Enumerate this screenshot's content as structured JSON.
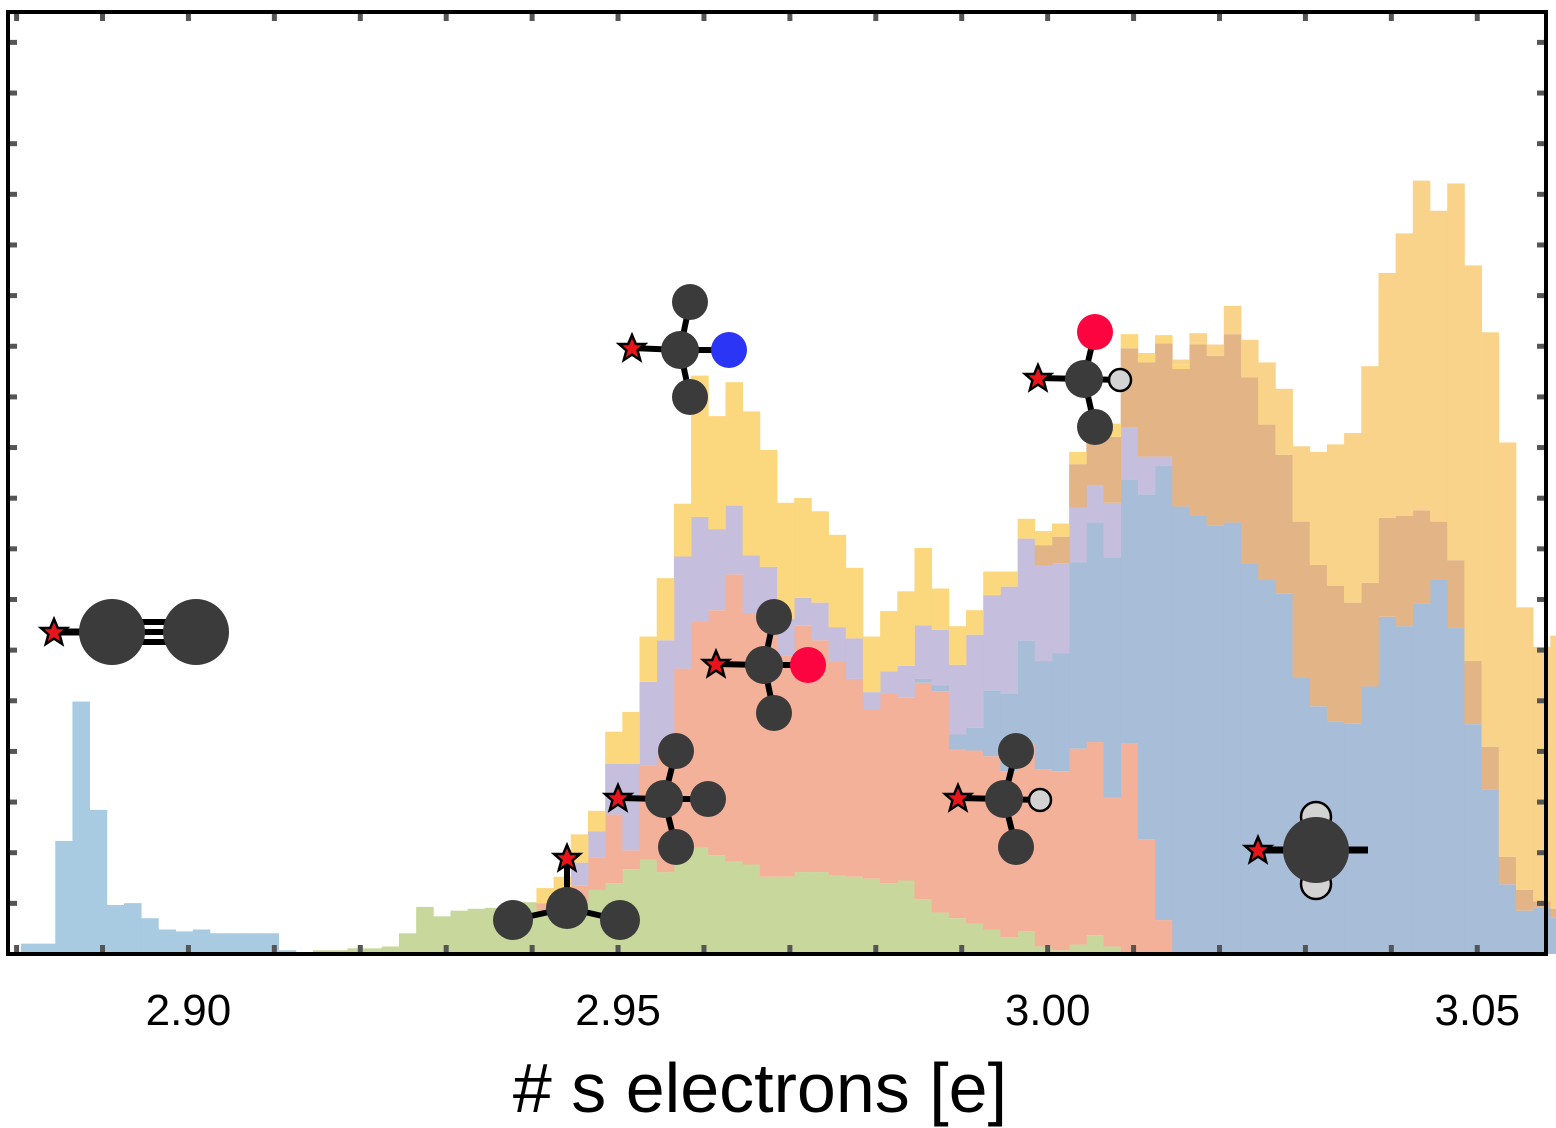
{
  "chart_data": {
    "type": "bar",
    "stacked": true,
    "xlabel": "# s electrons [e]",
    "xlim": [
      2.879,
      3.058
    ],
    "ylim": [
      0,
      1.0
    ],
    "bin_start": 2.8805,
    "bin_width": 0.002,
    "x_ticks": [
      2.9,
      2.95,
      3.0,
      3.05
    ],
    "x_tick_labels": [
      "2.90",
      "2.95",
      "3.00",
      "3.05"
    ],
    "y_ticks_shown_without_labels": true,
    "grid": false,
    "legend": "none",
    "series_note": "Per-bin stacked heights as fraction of the plot's vertical range; series distinguished by colour and identified by molecular-fragment icons.",
    "series": [
      {
        "color": "#a9cbe1",
        "values": [
          0.011,
          0.011,
          0.12,
          0.268,
          0.153,
          0.052,
          0.054,
          0.038,
          0.026,
          0.024,
          0.026,
          0.022,
          0.022,
          0.022,
          0.022,
          0.004,
          0.002,
          0,
          0,
          0,
          0,
          0,
          0,
          0,
          0,
          0,
          0,
          0,
          0,
          0,
          0,
          0,
          0,
          0,
          0,
          0,
          0,
          0,
          0,
          0,
          0,
          0,
          0,
          0,
          0,
          0,
          0,
          0,
          0,
          0,
          0,
          0,
          0,
          0,
          0,
          0,
          0,
          0,
          0,
          0,
          0,
          0,
          0,
          0,
          0,
          0,
          0,
          0,
          0,
          0,
          0,
          0,
          0,
          0,
          0,
          0,
          0,
          0,
          0,
          0,
          0,
          0,
          0,
          0,
          0,
          0,
          0,
          0,
          0,
          0,
          0
        ]
      },
      {
        "color": "#c8d89c",
        "values": [
          0,
          0,
          0,
          0,
          0,
          0,
          0,
          0,
          0,
          0,
          0,
          0,
          0,
          0,
          0,
          0,
          0,
          0.004,
          0.004,
          0.006,
          0.006,
          0.008,
          0.022,
          0.05,
          0.04,
          0.046,
          0.048,
          0.049,
          0.05,
          0.055,
          0.046,
          0.046,
          0.055,
          0.068,
          0.075,
          0.09,
          0.1,
          0.087,
          0.111,
          0.113,
          0.105,
          0.098,
          0.095,
          0.082,
          0.082,
          0.087,
          0.087,
          0.083,
          0.082,
          0.08,
          0.075,
          0.078,
          0.058,
          0.044,
          0.038,
          0.032,
          0.026,
          0.018,
          0.024,
          0.008,
          0.004,
          0.01,
          0.02,
          0.008,
          0,
          0,
          0,
          0,
          0,
          0,
          0,
          0,
          0,
          0,
          0,
          0,
          0,
          0,
          0,
          0,
          0,
          0,
          0,
          0,
          0,
          0,
          0,
          0,
          0
        ]
      },
      {
        "color": "#f3b19a",
        "values": [
          0,
          0,
          0,
          0,
          0,
          0,
          0,
          0,
          0,
          0,
          0,
          0,
          0,
          0,
          0,
          0,
          0,
          0,
          0,
          0,
          0,
          0,
          0,
          0,
          0,
          0,
          0,
          0,
          0,
          0,
          0.008,
          0.016,
          0.018,
          0.034,
          0.073,
          0.02,
          0.1,
          0.124,
          0.192,
          0.24,
          0.26,
          0.305,
          0.267,
          0.267,
          0.235,
          0.262,
          0.246,
          0.228,
          0.21,
          0.179,
          0.202,
          0.194,
          0.23,
          0.235,
          0.179,
          0.184,
          0.184,
          0.176,
          0.199,
          0.188,
          0.19,
          0.208,
          0.205,
          0.158,
          0.224,
          0.122,
          0.036,
          0,
          0,
          0,
          0,
          0,
          0,
          0,
          0,
          0,
          0,
          0,
          0,
          0,
          0,
          0,
          0,
          0,
          0,
          0,
          0,
          0,
          0,
          0,
          0
        ]
      },
      {
        "color": "#a8bdd8",
        "values": [
          0,
          0,
          0,
          0,
          0,
          0,
          0,
          0,
          0,
          0,
          0,
          0,
          0,
          0,
          0,
          0,
          0,
          0,
          0,
          0,
          0,
          0,
          0,
          0,
          0,
          0,
          0,
          0,
          0,
          0,
          0,
          0,
          0,
          0,
          0,
          0,
          0,
          0,
          0,
          0,
          0,
          0,
          0,
          0,
          0,
          0,
          0,
          0,
          0,
          0,
          0,
          0,
          0.004,
          0.006,
          0.016,
          0.024,
          0.07,
          0.082,
          0.11,
          0.115,
          0.125,
          0.198,
          0.233,
          0.255,
          0.28,
          0.366,
          0.482,
          0.475,
          0.465,
          0.455,
          0.458,
          0.415,
          0.397,
          0.383,
          0.293,
          0.263,
          0.247,
          0.245,
          0.284,
          0.358,
          0.348,
          0.372,
          0.398,
          0.346,
          0.244,
          0.175,
          0.074,
          0.046,
          0.049,
          0.039,
          0.02,
          0.02,
          0.004,
          0.011,
          0.01,
          0.004,
          0.002
        ]
      },
      {
        "color": "#c5bedc",
        "values": [
          0,
          0,
          0,
          0,
          0,
          0,
          0,
          0,
          0,
          0,
          0,
          0,
          0,
          0,
          0,
          0,
          0,
          0,
          0,
          0,
          0,
          0,
          0,
          0,
          0,
          0,
          0,
          0,
          0,
          0,
          0,
          0,
          0.024,
          0.028,
          0.054,
          0.092,
          0.089,
          0.122,
          0.119,
          0.111,
          0.086,
          0.073,
          0.061,
          0.062,
          0.039,
          0.029,
          0.04,
          0.036,
          0.043,
          0.019,
          0.023,
          0.034,
          0.057,
          0.059,
          0.074,
          0.099,
          0.101,
          0.114,
          0.108,
          0.101,
          0.096,
          0.058,
          0.039,
          0.058,
          0.055,
          0.04,
          0.01,
          0,
          0,
          0,
          0,
          0,
          0,
          0,
          0,
          0,
          0,
          0,
          0,
          0,
          0,
          0,
          0,
          0,
          0,
          0,
          0,
          0,
          0,
          0,
          0
        ]
      },
      {
        "color": "#e2b486",
        "values": [
          0,
          0,
          0,
          0,
          0,
          0,
          0,
          0,
          0,
          0,
          0,
          0,
          0,
          0,
          0,
          0,
          0,
          0,
          0,
          0,
          0,
          0,
          0,
          0,
          0,
          0,
          0,
          0,
          0,
          0,
          0,
          0,
          0,
          0,
          0,
          0,
          0,
          0,
          0,
          0,
          0,
          0,
          0,
          0,
          0,
          0,
          0,
          0,
          0,
          0,
          0,
          0,
          0,
          0,
          0,
          0,
          0,
          0,
          0,
          0.022,
          0.028,
          0.046,
          0.059,
          0.07,
          0.084,
          0.1,
          0.12,
          0.146,
          0.182,
          0.18,
          0.2,
          0.197,
          0.165,
          0.147,
          0.166,
          0.15,
          0.144,
          0.128,
          0.11,
          0.105,
          0.117,
          0.099,
          0.061,
          0.072,
          0.067,
          0.045,
          0.029,
          0.022,
          0.007,
          0.009,
          0.004,
          0.01,
          0.003,
          0.001,
          0,
          0,
          0
        ]
      },
      {
        "color": "#fbd77e",
        "values": [
          0,
          0,
          0,
          0,
          0,
          0,
          0,
          0,
          0,
          0,
          0,
          0,
          0,
          0,
          0,
          0,
          0,
          0,
          0,
          0,
          0,
          0,
          0,
          0,
          0,
          0,
          0,
          0,
          0,
          0,
          0.016,
          0.02,
          0.03,
          0.022,
          0.034,
          0.055,
          0.048,
          0.066,
          0.056,
          0.15,
          0.12,
          0.131,
          0.153,
          0.124,
          0.123,
          0.106,
          0.097,
          0.098,
          0.075,
          0.059,
          0.064,
          0.079,
          0.082,
          0.044,
          0.041,
          0.026,
          0.025,
          0.016,
          0.021,
          0.015,
          0.014,
          0.013,
          0.009,
          0.014,
          0.015,
          0.01,
          0.009,
          0.005,
          0.002,
          0,
          0,
          0,
          0,
          0,
          0,
          0,
          0,
          0,
          0,
          0,
          0,
          0,
          0,
          0,
          0,
          0,
          0,
          0,
          0,
          0,
          0,
          0,
          0,
          0,
          0,
          0,
          0
        ]
      },
      {
        "color": "#f9d38a",
        "values": [
          0,
          0,
          0,
          0,
          0,
          0,
          0,
          0,
          0,
          0,
          0,
          0,
          0,
          0,
          0,
          0,
          0,
          0,
          0,
          0,
          0,
          0,
          0,
          0,
          0,
          0,
          0,
          0,
          0,
          0,
          0,
          0,
          0,
          0,
          0,
          0,
          0,
          0,
          0,
          0,
          0,
          0,
          0,
          0,
          0,
          0,
          0,
          0,
          0,
          0,
          0,
          0,
          0,
          0,
          0,
          0,
          0,
          0,
          0,
          0,
          0,
          0,
          0,
          0,
          0,
          0,
          0,
          0.005,
          0.01,
          0.012,
          0.03,
          0.04,
          0.066,
          0.07,
          0.08,
          0.12,
          0.15,
          0.18,
          0.23,
          0.26,
          0.3,
          0.35,
          0.33,
          0.4,
          0.42,
          0.44,
          0.44,
          0.3,
          0.27,
          0.29,
          0.24,
          0.24,
          0.31,
          0.28,
          0.3,
          0.33,
          0.24,
          0.21,
          0.06,
          0.02,
          0.01
        ]
      }
    ]
  }
}
